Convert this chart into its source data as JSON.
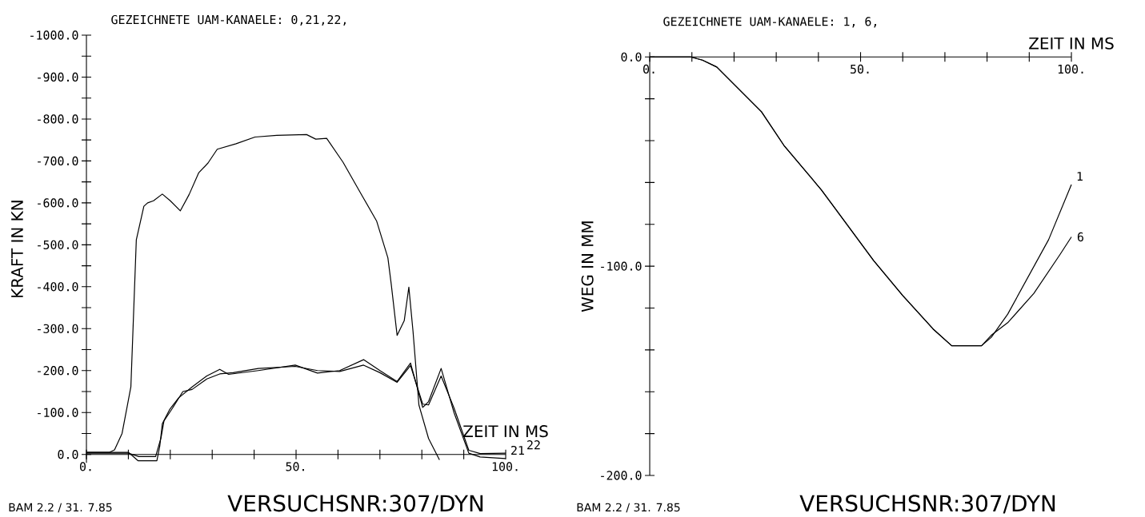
{
  "chart_data": [
    {
      "type": "line",
      "title": "GEZEICHNETE UAM-KANAELE: 0,21,22,",
      "xlabel": "ZEIT IN MS",
      "ylabel": "KRAFT IN KN",
      "xlim": [
        0,
        100
      ],
      "ylim": [
        20,
        -1000
      ],
      "xticks": [
        {
          "value": 0,
          "label": "0."
        },
        {
          "value": 10,
          "label": null
        },
        {
          "value": 20,
          "label": null
        },
        {
          "value": 30,
          "label": null
        },
        {
          "value": 40,
          "label": null
        },
        {
          "value": 50,
          "label": "50."
        },
        {
          "value": 60,
          "label": null
        },
        {
          "value": 70,
          "label": null
        },
        {
          "value": 80,
          "label": null
        },
        {
          "value": 90,
          "label": null
        },
        {
          "value": 100,
          "label": "100."
        }
      ],
      "yticks": [
        {
          "value": -1000,
          "label": "-1000.0"
        },
        {
          "value": -950,
          "label": null
        },
        {
          "value": -900,
          "label": "-900.0"
        },
        {
          "value": -850,
          "label": null
        },
        {
          "value": -800,
          "label": "-800.0"
        },
        {
          "value": -750,
          "label": null
        },
        {
          "value": -700,
          "label": "-700.0"
        },
        {
          "value": -650,
          "label": null
        },
        {
          "value": -600,
          "label": "-600.0"
        },
        {
          "value": -550,
          "label": null
        },
        {
          "value": -500,
          "label": "-500.0"
        },
        {
          "value": -450,
          "label": null
        },
        {
          "value": -400,
          "label": "-400.0"
        },
        {
          "value": -350,
          "label": null
        },
        {
          "value": -300,
          "label": "-300.0"
        },
        {
          "value": -250,
          "label": null
        },
        {
          "value": -200,
          "label": "-200.0"
        },
        {
          "value": -150,
          "label": null
        },
        {
          "value": -100,
          "label": "-100.0"
        },
        {
          "value": -50,
          "label": null
        },
        {
          "value": 0,
          "label": "0.0"
        }
      ],
      "annotations": [
        "BAM 2.2 / 31. 7.85",
        "VERSUCHSNR:307/DYN"
      ],
      "series": [
        {
          "color": "#000000",
          "x": [
            0,
            5.5,
            6.7,
            8.5,
            10.6,
            11.9,
            13.7,
            14.6,
            16,
            18.1,
            20,
            22.4,
            24.5,
            26.8,
            29,
            31.2,
            35.7,
            40.2,
            45.4,
            52.5,
            54.7,
            57.3,
            61.2,
            65.7,
            69.2,
            71.9,
            72.7,
            74.1,
            75.8,
            76.9,
            77.9,
            79.3,
            81.6,
            84.2
          ],
          "values": [
            -5,
            -5,
            -11,
            -50,
            -161,
            -512,
            -592,
            -600,
            -605,
            -621,
            -605,
            -581,
            -620,
            -672,
            -695,
            -728,
            -741,
            -757,
            -761,
            -763,
            -752,
            -754,
            -697,
            -618,
            -557,
            -469,
            -406,
            -284,
            -319,
            -399,
            -293,
            -118,
            -38,
            13
          ]
        },
        {
          "name": "21",
          "color": "#000000",
          "x": [
            0,
            10,
            12.3,
            16.8,
            17.5,
            18.1,
            19.9,
            22,
            25.2,
            28.7,
            31.8,
            33.9,
            41,
            49.8,
            55.1,
            60.4,
            66.1,
            70,
            74.1,
            77.3,
            80.2,
            81.6,
            84.6,
            87.7,
            91.2,
            93.9,
            100
          ],
          "values": [
            -5,
            -5,
            15,
            15,
            -20,
            -73,
            -108,
            -135,
            -161,
            -187,
            -203,
            -191,
            -200,
            -213,
            -194,
            -200,
            -226,
            -200,
            -174,
            -218,
            -112,
            -126,
            -205,
            -99,
            -3,
            6,
            10
          ]
        },
        {
          "name": "22",
          "color": "#000000",
          "x": [
            0,
            10,
            12.5,
            16.5,
            17.8,
            18.5,
            20.5,
            23,
            25.2,
            28.7,
            31.8,
            35,
            41,
            49.8,
            55.1,
            60.4,
            66.1,
            70,
            74.1,
            77.3,
            80.2,
            81.6,
            84.6,
            87.7,
            91.2,
            93.9,
            100
          ],
          "values": [
            -3,
            -3,
            5,
            5,
            -40,
            -80,
            -110,
            -150,
            -155,
            -180,
            -192,
            -195,
            -205,
            -210,
            -200,
            -198,
            -213,
            -195,
            -172,
            -212,
            -120,
            -118,
            -187,
            -110,
            -10,
            -2,
            -3
          ]
        }
      ]
    },
    {
      "type": "line",
      "title": "GEZEICHNETE UAM-KANAELE: 1, 6,",
      "xlabel": "ZEIT IN MS",
      "ylabel": "WEG IN MM",
      "xlim": [
        0,
        100
      ],
      "ylim": [
        -200,
        0
      ],
      "xticks": [
        {
          "value": 0,
          "label": "0."
        },
        {
          "value": 10,
          "label": null
        },
        {
          "value": 20,
          "label": null
        },
        {
          "value": 30,
          "label": null
        },
        {
          "value": 40,
          "label": null
        },
        {
          "value": 50,
          "label": "50."
        },
        {
          "value": 60,
          "label": null
        },
        {
          "value": 70,
          "label": null
        },
        {
          "value": 80,
          "label": null
        },
        {
          "value": 90,
          "label": null
        },
        {
          "value": 100,
          "label": "100."
        }
      ],
      "yticks": [
        {
          "value": -200,
          "label": "-200.0"
        },
        {
          "value": -180,
          "label": null
        },
        {
          "value": -160,
          "label": null
        },
        {
          "value": -140,
          "label": null
        },
        {
          "value": -120,
          "label": null
        },
        {
          "value": -100,
          "label": "-100.0"
        },
        {
          "value": -80,
          "label": null
        },
        {
          "value": -60,
          "label": null
        },
        {
          "value": -40,
          "label": null
        },
        {
          "value": -20,
          "label": null
        },
        {
          "value": 0,
          "label": "0.0"
        }
      ],
      "annotations": [
        "BAM 2.2 / 31. 7.85",
        "VERSUCHSNR:307/DYN"
      ],
      "series": [
        {
          "name": "1",
          "color": "#000000",
          "x": [
            0,
            9.7,
            12.5,
            15.9,
            21.2,
            26.5,
            31.8,
            40.7,
            53.1,
            60,
            67.2,
            71.6,
            78.7,
            81,
            84.9,
            94.6,
            100
          ],
          "values": [
            0,
            0,
            -1.5,
            -4.8,
            -15.5,
            -26.2,
            -42.2,
            -63.5,
            -97.3,
            -114,
            -130,
            -138,
            -138,
            -134,
            -122.9,
            -87.3,
            -61
          ]
        },
        {
          "name": "6",
          "color": "#000000",
          "x": [
            0,
            9.7,
            12.5,
            15.9,
            21.2,
            26.5,
            31.8,
            40.7,
            53.1,
            60,
            67.2,
            71.6,
            78.7,
            81,
            84.9,
            91.1,
            97.3,
            100
          ],
          "values": [
            0,
            0,
            -1.5,
            -4.8,
            -15.5,
            -26.2,
            -42.2,
            -63.5,
            -97.3,
            -114,
            -130,
            -138,
            -138,
            -133,
            -127,
            -113,
            -94.4,
            -86
          ]
        }
      ]
    }
  ]
}
